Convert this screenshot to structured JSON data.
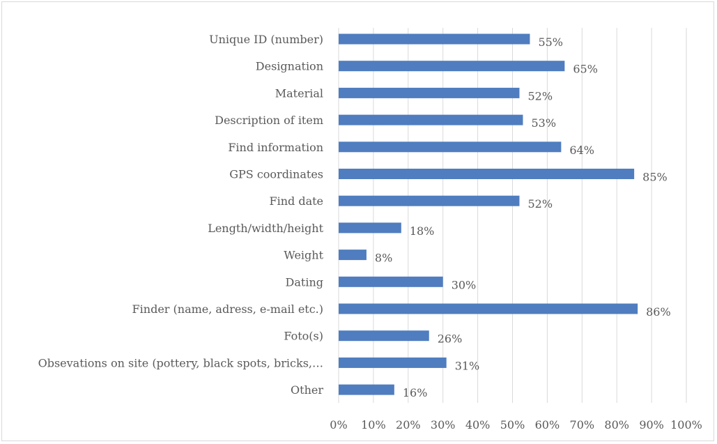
{
  "chart_data": {
    "type": "bar",
    "orientation": "horizontal",
    "title": "",
    "xlabel": "",
    "ylabel": "",
    "xlim": [
      0,
      100
    ],
    "grid": true,
    "legend": "none",
    "bar_color": "#4f7dbf",
    "x_ticks": [
      "0%",
      "10%",
      "20%",
      "30%",
      "40%",
      "50%",
      "60%",
      "70%",
      "80%",
      "90%",
      "100%"
    ],
    "categories": [
      "Unique ID (number)",
      "Designation",
      "Material",
      "Description of item",
      "Find information",
      "GPS coordinates",
      "Find date",
      "Length/width/height",
      "Weight",
      "Dating",
      "Finder (name, adress, e-mail etc.)",
      "Foto(s)",
      "Obsevations on site (pottery, black spots, bricks,…",
      "Other"
    ],
    "values": [
      55,
      65,
      52,
      53,
      64,
      85,
      52,
      18,
      8,
      30,
      86,
      26,
      31,
      16
    ],
    "value_labels": [
      "55%",
      "65%",
      "52%",
      "53%",
      "64%",
      "85%",
      "52%",
      "18%",
      "8%",
      "30%",
      "86%",
      "26%",
      "31%",
      "16%"
    ]
  }
}
